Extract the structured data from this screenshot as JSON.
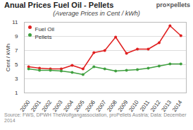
{
  "chart_data": {
    "type": "line",
    "title": "Anual Prices Fuel Oil - Pellets",
    "subtitle": "(Average Prices in Cent / kWh)",
    "y_label": "Cent / kWh",
    "annotations": [
      "pro×pellets",
      "Source: FWS, DPWH TheWolfgangassociation, proPellets Austria; Data: December 2014"
    ],
    "x": [
      2000,
      2001,
      2002,
      2003,
      2004,
      2005,
      2006,
      2007,
      2008,
      2009,
      2010,
      2011,
      2012,
      2013,
      2014
    ],
    "series": [
      {
        "name": "Fuel Oil",
        "color": "#e02020",
        "marker": "circle",
        "values": [
          4.7,
          4.5,
          4.4,
          4.4,
          4.9,
          4.4,
          6.7,
          7.0,
          8.9,
          6.6,
          7.2,
          7.2,
          8.1,
          10.5,
          9.1
        ]
      },
      {
        "name": "Pellets",
        "color": "#40a040",
        "marker": "circle",
        "values": [
          4.4,
          4.2,
          4.2,
          4.1,
          3.9,
          3.6,
          4.7,
          4.4,
          4.1,
          4.2,
          4.3,
          4.5,
          4.8,
          5.1,
          5.1
        ]
      }
    ],
    "xlim": [
      1999.6,
      2014.5
    ],
    "xticks": [
      2000,
      2001,
      2002,
      2003,
      2004,
      2005,
      2006,
      2007,
      2008,
      2009,
      2010,
      2011,
      2012,
      2013,
      2014
    ],
    "ylim": [
      1,
      11
    ],
    "yticks": [
      1,
      3,
      5,
      7,
      9,
      11
    ],
    "grid": true,
    "legend": "upper left"
  }
}
